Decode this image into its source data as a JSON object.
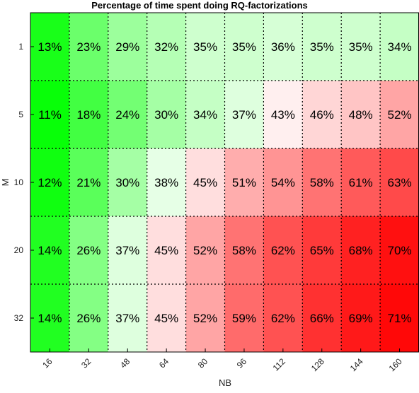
{
  "chart_data": {
    "type": "heatmap",
    "title": "Percentage of time spent doing RQ-factorizations",
    "xlabel": "NB",
    "ylabel": "M",
    "x_categories": [
      "16",
      "32",
      "48",
      "64",
      "80",
      "96",
      "112",
      "128",
      "144",
      "160"
    ],
    "y_categories": [
      "1",
      "5",
      "10",
      "20",
      "32"
    ],
    "values": [
      [
        13,
        23,
        29,
        32,
        35,
        35,
        36,
        35,
        35,
        34
      ],
      [
        11,
        18,
        24,
        30,
        34,
        37,
        43,
        46,
        48,
        52
      ],
      [
        12,
        21,
        30,
        38,
        45,
        51,
        54,
        58,
        61,
        63
      ],
      [
        14,
        26,
        37,
        45,
        52,
        58,
        62,
        65,
        68,
        70
      ],
      [
        14,
        26,
        37,
        45,
        52,
        59,
        62,
        66,
        69,
        71
      ]
    ],
    "value_suffix": "%",
    "colormap": {
      "low": "#00ff00",
      "mid": "#ffffff",
      "high": "#ff0000"
    },
    "grid": "dotted"
  }
}
